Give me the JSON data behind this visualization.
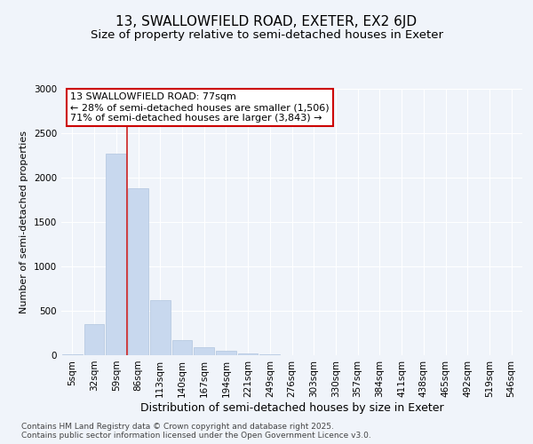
{
  "title_line1": "13, SWALLOWFIELD ROAD, EXETER, EX2 6JD",
  "title_line2": "Size of property relative to semi-detached houses in Exeter",
  "xlabel": "Distribution of semi-detached houses by size in Exeter",
  "ylabel": "Number of semi-detached properties",
  "categories": [
    "5sqm",
    "32sqm",
    "59sqm",
    "86sqm",
    "113sqm",
    "140sqm",
    "167sqm",
    "194sqm",
    "221sqm",
    "249sqm",
    "276sqm",
    "303sqm",
    "330sqm",
    "357sqm",
    "384sqm",
    "411sqm",
    "438sqm",
    "465sqm",
    "492sqm",
    "519sqm",
    "546sqm"
  ],
  "values": [
    10,
    355,
    2270,
    1880,
    625,
    170,
    90,
    55,
    25,
    10,
    4,
    2,
    1,
    0,
    0,
    0,
    0,
    0,
    0,
    0,
    0
  ],
  "bar_color": "#c8d8ee",
  "bar_edge_color": "#b0c4de",
  "red_line_x": 2.5,
  "annotation_title": "13 SWALLOWFIELD ROAD: 77sqm",
  "annotation_line1": "← 28% of semi-detached houses are smaller (1,506)",
  "annotation_line2": "71% of semi-detached houses are larger (3,843) →",
  "annotation_box_facecolor": "#ffffff",
  "annotation_box_edgecolor": "#cc0000",
  "ylim": [
    0,
    3000
  ],
  "yticks": [
    0,
    500,
    1000,
    1500,
    2000,
    2500,
    3000
  ],
  "background_color": "#f0f4fa",
  "plot_bg_color": "#f0f4fa",
  "footer_line1": "Contains HM Land Registry data © Crown copyright and database right 2025.",
  "footer_line2": "Contains public sector information licensed under the Open Government Licence v3.0.",
  "red_line_color": "#cc2222",
  "title_fontsize": 11,
  "subtitle_fontsize": 9.5,
  "tick_fontsize": 7.5,
  "xlabel_fontsize": 9,
  "ylabel_fontsize": 8,
  "annotation_fontsize": 8,
  "footer_fontsize": 6.5
}
